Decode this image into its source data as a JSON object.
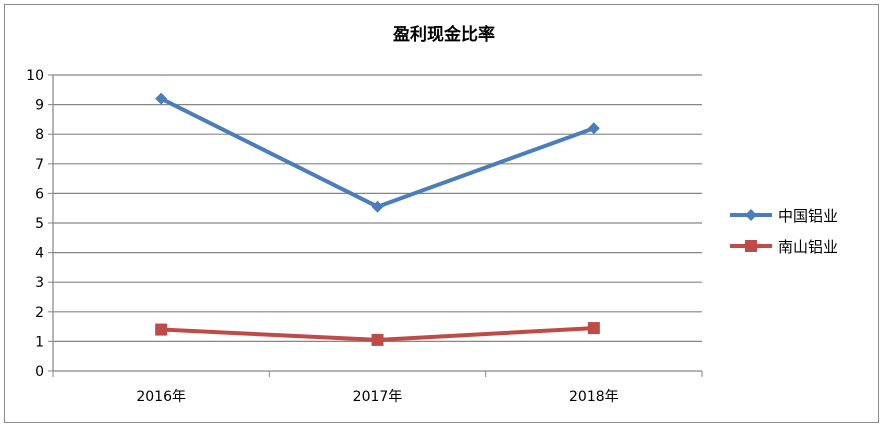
{
  "chart_data": {
    "type": "line",
    "title": "盈利现金比率",
    "xlabel": "",
    "ylabel": "",
    "categories": [
      "2016年",
      "2017年",
      "2018年"
    ],
    "ylim": [
      0,
      10
    ],
    "yticks": [
      "0",
      "1",
      "2",
      "3",
      "4",
      "5",
      "6",
      "7",
      "8",
      "9",
      "10"
    ],
    "grid": true,
    "legend_position": "right",
    "series": [
      {
        "name": "中国铝业",
        "values": [
          9.2,
          5.55,
          8.2
        ],
        "color": "#4a7ebb",
        "marker": "diamond"
      },
      {
        "name": "南山铝业",
        "values": [
          1.4,
          1.05,
          1.45
        ],
        "color": "#be4b48",
        "marker": "square"
      }
    ]
  }
}
